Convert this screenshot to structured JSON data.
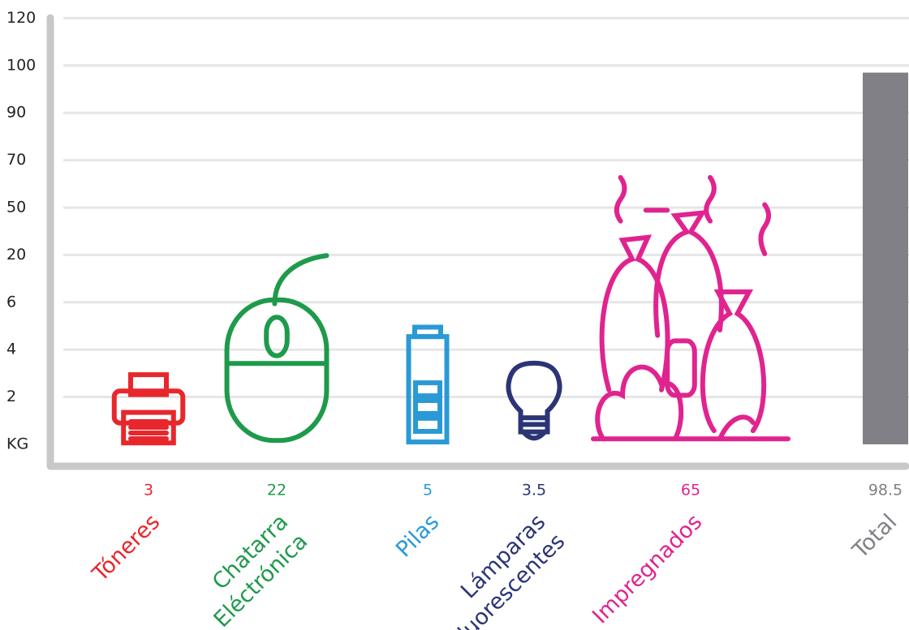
{
  "chart_data": {
    "type": "pictogram",
    "categories": [
      [
        "Tóneres"
      ],
      [
        "Chatarra",
        "Eléctrónica"
      ],
      [
        "Pilas"
      ],
      [
        "Lámparas",
        "Fluorescentes"
      ],
      [
        "Impregnados"
      ],
      [
        "Total"
      ]
    ],
    "values": [
      3,
      22,
      5,
      3.5,
      65,
      98.5
    ],
    "colors": [
      "#e8272c",
      "#1e9a4b",
      "#2a9ad6",
      "#2b3576",
      "#e0248f",
      "#808086"
    ],
    "ylim": [
      0,
      120
    ],
    "yticks": [
      {
        "value": 0,
        "label": "KG"
      },
      2,
      4,
      6,
      20,
      50,
      70,
      90,
      100,
      120
    ],
    "grid": true
  }
}
